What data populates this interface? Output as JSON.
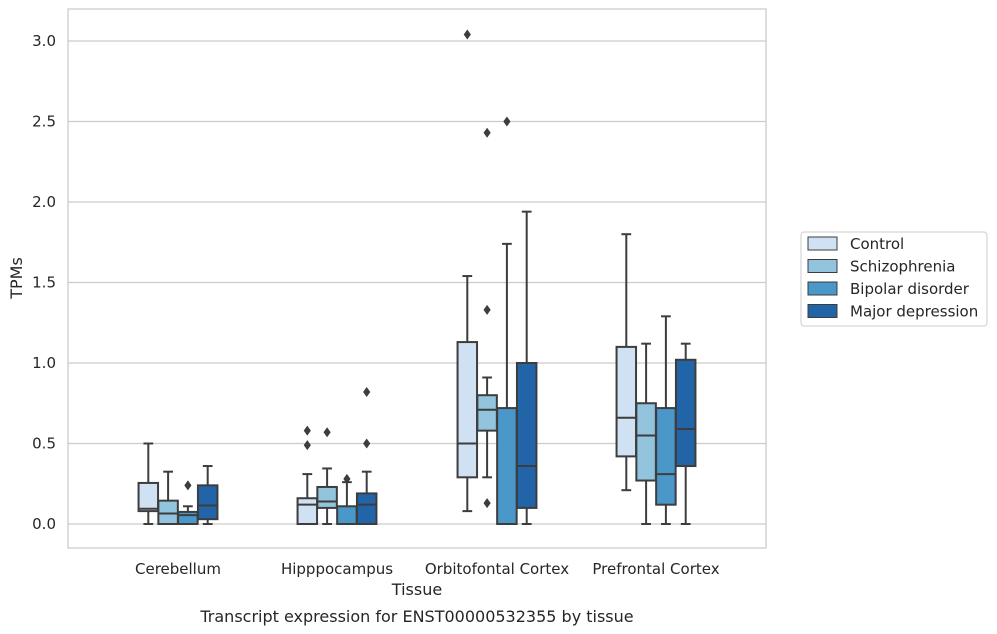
{
  "chart_data": {
    "type": "box",
    "xlabel": "Tissue",
    "ylabel": "TPMs",
    "caption": "Transcript expression for ENST00000532355 by tissue",
    "categories": [
      "Cerebellum",
      "Hipppocampus",
      "Orbitofontal Cortex",
      "Prefrontal Cortex"
    ],
    "ylim": [
      -0.15,
      3.2
    ],
    "yticks": [
      0.0,
      0.5,
      1.0,
      1.5,
      2.0,
      2.5,
      3.0
    ],
    "ytick_labels": [
      "0.0",
      "0.5",
      "1.0",
      "1.5",
      "2.0",
      "2.5",
      "3.0"
    ],
    "grid": "horizontal",
    "legend_position": "right",
    "series": [
      {
        "name": "Control",
        "color": "#cfe1f2"
      },
      {
        "name": "Schizophrenia",
        "color": "#93c4de"
      },
      {
        "name": "Bipolar disorder",
        "color": "#4a98c9"
      },
      {
        "name": "Major depression",
        "color": "#2264a8"
      }
    ],
    "boxes": [
      [
        {
          "whislo": 0.0,
          "q1": 0.08,
          "med": 0.095,
          "q3": 0.255,
          "whishi": 0.5,
          "fliers": []
        },
        {
          "whislo": 0.0,
          "q1": 0.0,
          "med": 0.065,
          "q3": 0.145,
          "whishi": 0.325,
          "fliers": []
        },
        {
          "whislo": 0.0,
          "q1": 0.0,
          "med": 0.055,
          "q3": 0.075,
          "whishi": 0.11,
          "fliers": [
            0.24
          ]
        },
        {
          "whislo": 0.0,
          "q1": 0.03,
          "med": 0.115,
          "q3": 0.24,
          "whishi": 0.36,
          "fliers": []
        }
      ],
      [
        {
          "whislo": 0.0,
          "q1": 0.0,
          "med": 0.12,
          "q3": 0.16,
          "whishi": 0.31,
          "fliers": [
            0.49,
            0.58
          ]
        },
        {
          "whislo": 0.0,
          "q1": 0.1,
          "med": 0.14,
          "q3": 0.23,
          "whishi": 0.345,
          "fliers": [
            0.57
          ]
        },
        {
          "whislo": 0.0,
          "q1": 0.0,
          "med": 0.0,
          "q3": 0.11,
          "whishi": 0.26,
          "fliers": [
            0.28
          ]
        },
        {
          "whislo": 0.0,
          "q1": 0.0,
          "med": 0.12,
          "q3": 0.19,
          "whishi": 0.325,
          "fliers": [
            0.5,
            0.82
          ]
        }
      ],
      [
        {
          "whislo": 0.08,
          "q1": 0.29,
          "med": 0.5,
          "q3": 1.13,
          "whishi": 1.54,
          "fliers": [
            3.04
          ]
        },
        {
          "whislo": 0.29,
          "q1": 0.58,
          "med": 0.71,
          "q3": 0.8,
          "whishi": 0.91,
          "fliers": [
            0.13,
            1.33,
            2.43
          ]
        },
        {
          "whislo": 0.0,
          "q1": 0.0,
          "med": 0.0,
          "q3": 0.72,
          "whishi": 1.74,
          "fliers": [
            2.5
          ]
        },
        {
          "whislo": 0.0,
          "q1": 0.1,
          "med": 0.36,
          "q3": 1.0,
          "whishi": 1.94,
          "fliers": []
        }
      ],
      [
        {
          "whislo": 0.21,
          "q1": 0.42,
          "med": 0.66,
          "q3": 1.1,
          "whishi": 1.8,
          "fliers": []
        },
        {
          "whislo": 0.0,
          "q1": 0.27,
          "med": 0.55,
          "q3": 0.75,
          "whishi": 1.12,
          "fliers": []
        },
        {
          "whislo": 0.0,
          "q1": 0.12,
          "med": 0.31,
          "q3": 0.72,
          "whishi": 1.29,
          "fliers": []
        },
        {
          "whislo": 0.0,
          "q1": 0.36,
          "med": 0.59,
          "q3": 1.02,
          "whishi": 1.12,
          "fliers": []
        }
      ]
    ]
  }
}
